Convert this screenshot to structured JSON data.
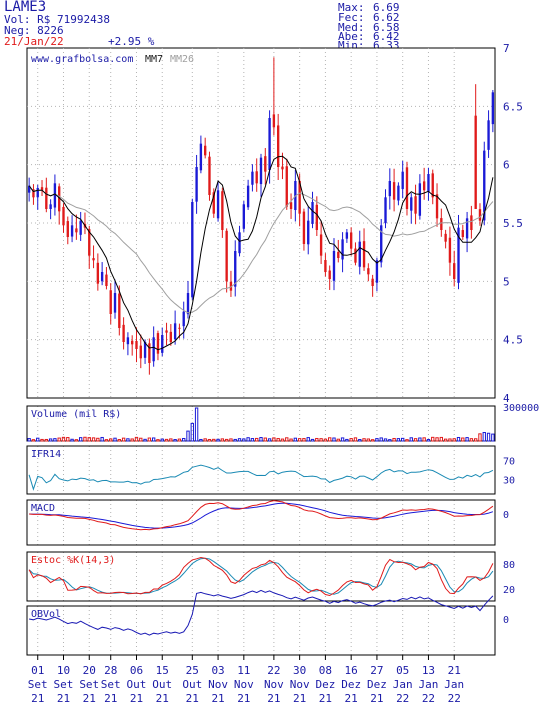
{
  "header": {
    "ticker": "LAME3",
    "volume": "Vol: R$ 71992438",
    "trades": "Neg: 8226",
    "date": "21/Jan/22",
    "change": "+2.95 %",
    "stats_labels": [
      "Max:",
      "Fec:",
      "Med:",
      "Abe:",
      "Min:"
    ],
    "stats_values": [
      "6.69",
      "6.62",
      "6.58",
      "6.42",
      "6.33"
    ]
  },
  "colors": {
    "up": "#1a1ad6",
    "down": "#e01a1a",
    "text": "#1a1aa6",
    "grid": "#b4b4b4",
    "ma7": "#000000",
    "ma26": "#a0a0a0"
  },
  "chart_data": [
    {
      "type": "candlestick",
      "title": "",
      "watermark": "www.grafbolsa.com",
      "legend": [
        "MM7",
        "MM26"
      ],
      "ylim": [
        4,
        7
      ],
      "y_ticks": [
        "4",
        "4.5",
        "5",
        "5.5",
        "6",
        "6.5",
        "7"
      ],
      "x_ticks": [
        {
          "day": "01",
          "month": "Set",
          "year": "21"
        },
        {
          "day": "10",
          "month": "Set",
          "year": "21"
        },
        {
          "day": "20",
          "month": "Set",
          "year": "21"
        },
        {
          "day": "28",
          "month": "Set",
          "year": "21"
        },
        {
          "day": "06",
          "month": "Out",
          "year": "21"
        },
        {
          "day": "15",
          "month": "Out",
          "year": "21"
        },
        {
          "day": "25",
          "month": "Out",
          "year": "21"
        },
        {
          "day": "03",
          "month": "Nov",
          "year": "21"
        },
        {
          "day": "11",
          "month": "Nov",
          "year": "21"
        },
        {
          "day": "22",
          "month": "Nov",
          "year": "21"
        },
        {
          "day": "30",
          "month": "Nov",
          "year": "21"
        },
        {
          "day": "08",
          "month": "Dez",
          "year": "21"
        },
        {
          "day": "16",
          "month": "Dez",
          "year": "21"
        },
        {
          "day": "27",
          "month": "Dez",
          "year": "21"
        },
        {
          "day": "05",
          "month": "Jan",
          "year": "22"
        },
        {
          "day": "13",
          "month": "Jan",
          "year": "22"
        },
        {
          "day": "21",
          "month": "Jan",
          "year": "22"
        }
      ],
      "x_tick_index": [
        2,
        8,
        14,
        19,
        25,
        31,
        38,
        44,
        50,
        57,
        63,
        69,
        75,
        81,
        87,
        93,
        99
      ],
      "closes": [
        5.82,
        5.72,
        5.8,
        5.78,
        5.62,
        5.66,
        5.84,
        5.6,
        5.48,
        5.38,
        5.48,
        5.42,
        5.52,
        5.46,
        5.22,
        5.18,
        4.98,
        5.08,
        4.96,
        4.72,
        4.9,
        4.6,
        4.48,
        4.52,
        4.46,
        4.42,
        4.34,
        4.48,
        4.3,
        4.52,
        4.38,
        4.54,
        4.56,
        4.48,
        4.64,
        4.6,
        4.74,
        4.9,
        5.68,
        5.98,
        6.18,
        6.08,
        5.74,
        5.58,
        5.78,
        5.44,
        5.0,
        4.92,
        5.26,
        5.42,
        5.66,
        5.82,
        5.94,
        5.84,
        6.06,
        5.94,
        6.4,
        6.32,
        5.98,
        5.96,
        5.64,
        5.62,
        5.86,
        5.58,
        5.32,
        5.52,
        5.68,
        5.44,
        5.22,
        5.08,
        5.02,
        5.26,
        5.2,
        5.36,
        5.42,
        5.28,
        5.16,
        5.34,
        5.12,
        5.06,
        4.96,
        5.18,
        5.48,
        5.72,
        5.86,
        5.7,
        5.82,
        5.94,
        5.62,
        5.72,
        5.58,
        5.84,
        5.78,
        5.92,
        5.72,
        5.54,
        5.44,
        5.34,
        5.16,
        5.02,
        5.46,
        5.38,
        5.54,
        5.44,
        5.62,
        5.52,
        6.12,
        6.38,
        6.62
      ],
      "volume": {
        "label": "Volume (mil R$)",
        "tick": "300000",
        "max": 300000
      },
      "ifr": {
        "label": "IFR14",
        "ticks": [
          "70",
          "30"
        ]
      },
      "macd": {
        "label": "MACD",
        "ticks": [
          "0"
        ]
      },
      "stoch": {
        "label": "Estoc %K(14,3)",
        "ticks": [
          "80",
          "20"
        ]
      },
      "obv": {
        "label": "OBVol",
        "ticks": [
          "0"
        ]
      }
    }
  ]
}
